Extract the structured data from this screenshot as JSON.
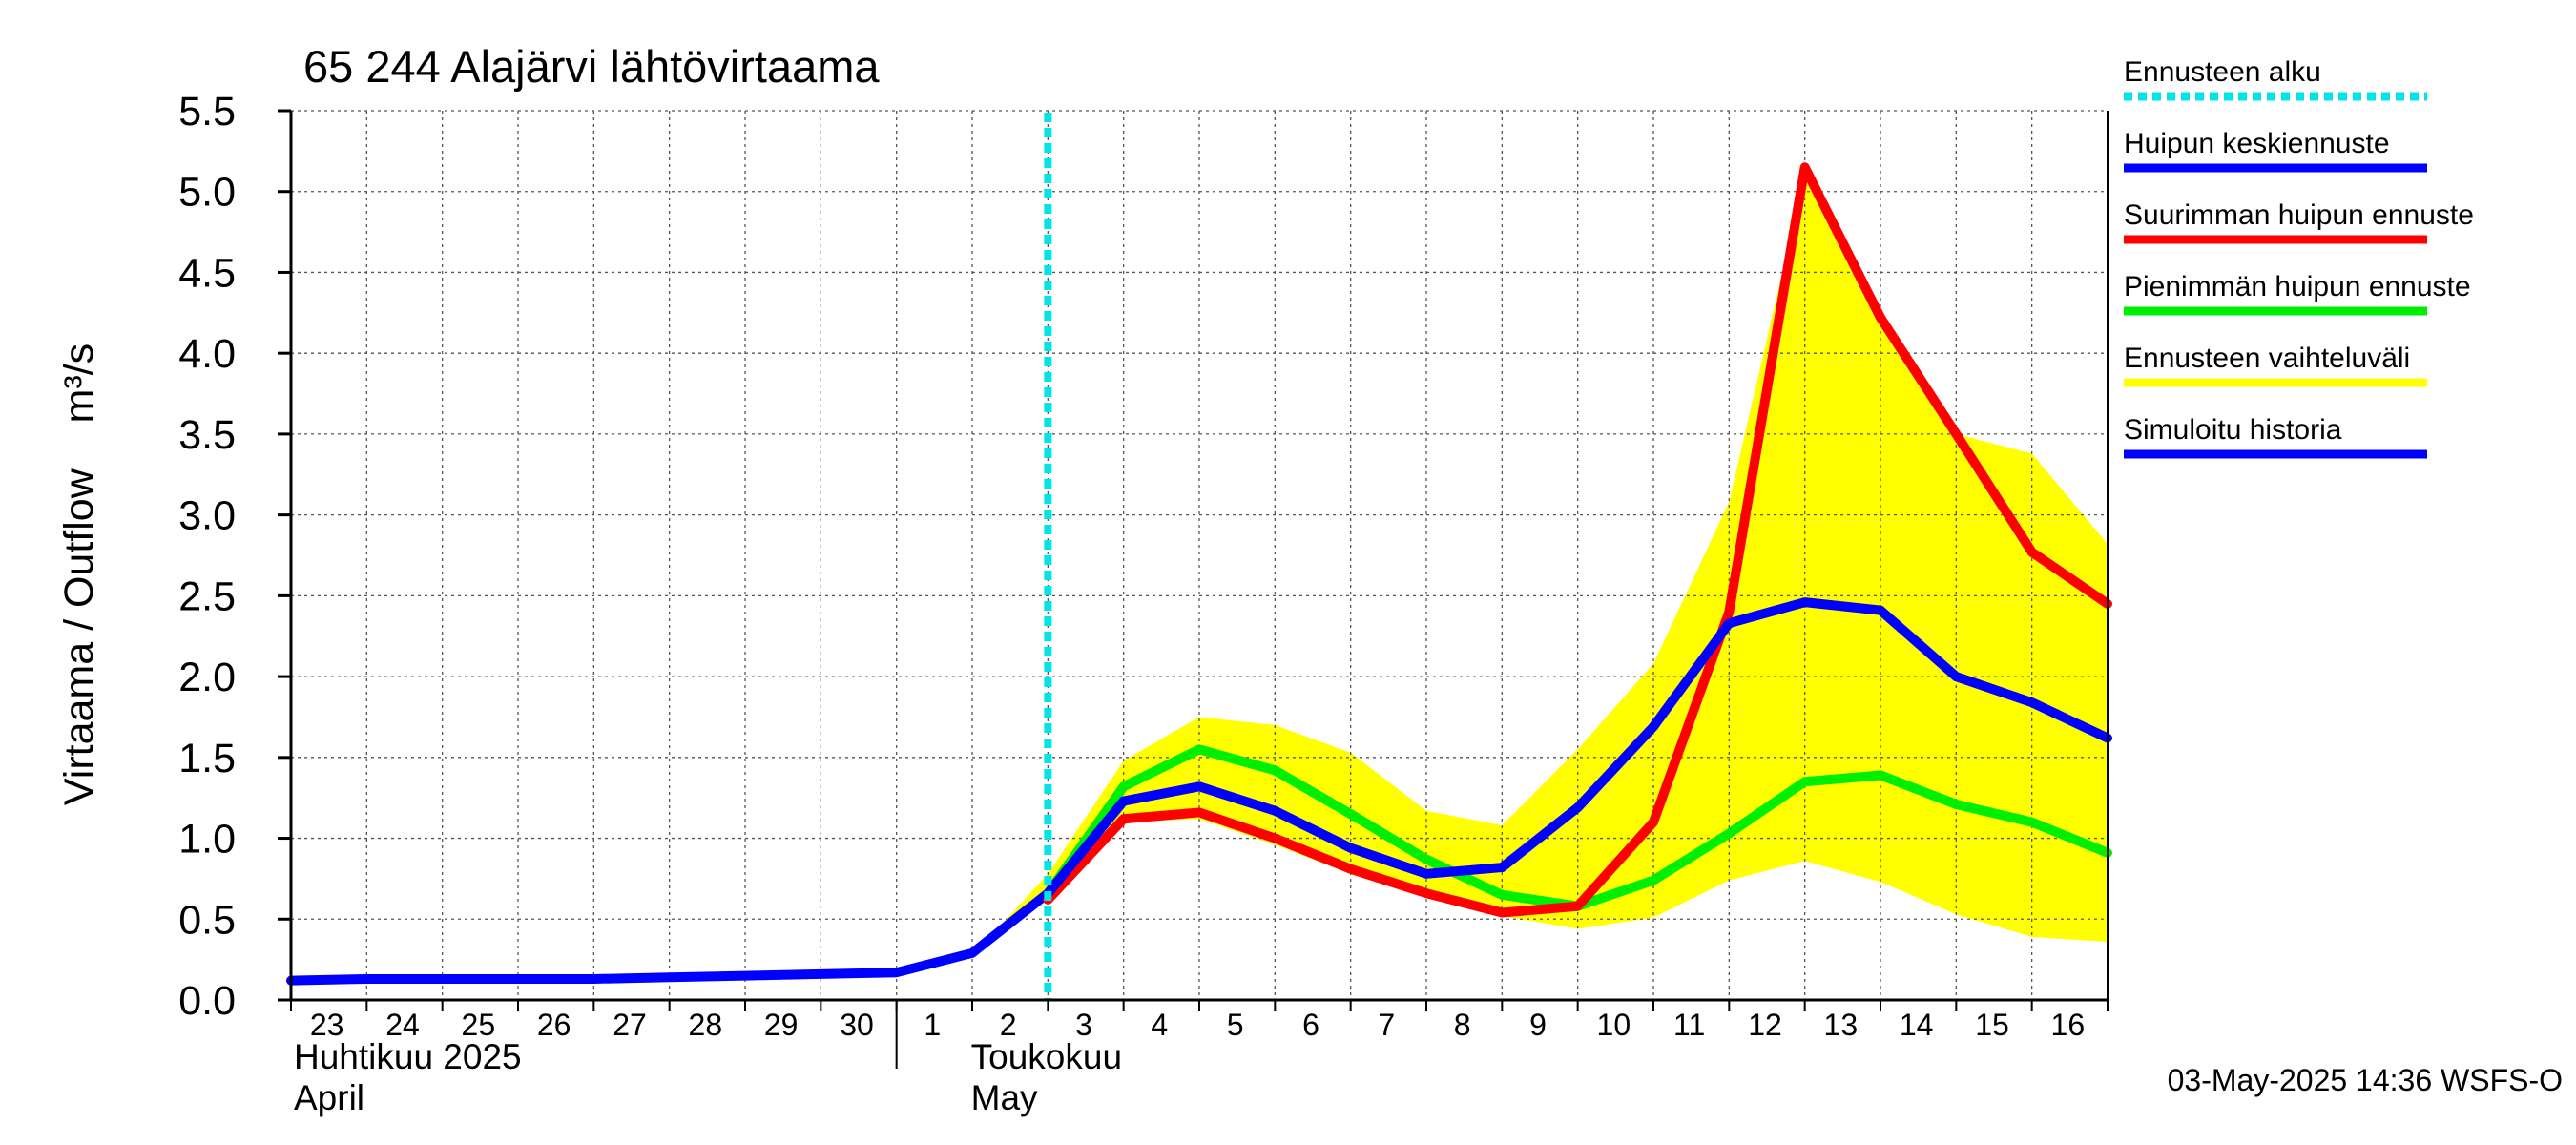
{
  "chart_data": {
    "type": "line",
    "title": "65 244 Alajärvi lähtövirtaama",
    "ylabel": "Virtaama / Outflow    m³/s",
    "ylim": [
      0.0,
      5.5
    ],
    "yticks": [
      "0.0",
      "0.5",
      "1.0",
      "1.5",
      "2.0",
      "2.5",
      "3.0",
      "3.5",
      "4.0",
      "4.5",
      "5.0",
      "5.5"
    ],
    "x_start": "2025-04-23",
    "x_end": "2025-05-17",
    "xtick_labels": [
      "23",
      "24",
      "25",
      "26",
      "27",
      "28",
      "29",
      "30",
      "1",
      "2",
      "3",
      "4",
      "5",
      "6",
      "7",
      "8",
      "9",
      "10",
      "11",
      "12",
      "13",
      "14",
      "15",
      "16"
    ],
    "month_labels": [
      {
        "fi": "Huhtikuu  2025",
        "en": "April"
      },
      {
        "fi": "Toukokuu",
        "en": "May"
      }
    ],
    "forecast_start": "2025-05-03",
    "grid": true,
    "legend_position": "right",
    "legend": [
      {
        "label": "Ennusteen alku",
        "color": "#00e5e5",
        "style": "dotted"
      },
      {
        "label": "Huipun keskiennuste",
        "color": "#0000ff",
        "style": "solid"
      },
      {
        "label": "Suurimman huipun ennuste",
        "color": "#ff0000",
        "style": "solid"
      },
      {
        "label": "Pienimmän huipun ennuste",
        "color": "#00ee00",
        "style": "solid"
      },
      {
        "label": "Ennusteen vaihteluväli",
        "color": "#ffff00",
        "style": "solid"
      },
      {
        "label": "Simuloitu historia",
        "color": "#0000ff",
        "style": "solid"
      }
    ],
    "band": {
      "name": "Ennusteen vaihteluväli",
      "color": "#ffff00",
      "x": [
        "2025-05-02",
        "2025-05-03",
        "2025-05-04",
        "2025-05-05",
        "2025-05-06",
        "2025-05-07",
        "2025-05-08",
        "2025-05-09",
        "2025-05-10",
        "2025-05-11",
        "2025-05-12",
        "2025-05-13",
        "2025-05-14",
        "2025-05-15",
        "2025-05-16",
        "2025-05-17"
      ],
      "upper": [
        0.27,
        0.78,
        1.48,
        1.75,
        1.7,
        1.53,
        1.17,
        1.08,
        1.55,
        2.08,
        3.08,
        5.1,
        4.2,
        3.5,
        3.38,
        2.82
      ],
      "lower": [
        0.27,
        0.62,
        1.1,
        1.12,
        0.96,
        0.78,
        0.64,
        0.52,
        0.44,
        0.51,
        0.74,
        0.86,
        0.73,
        0.53,
        0.39,
        0.36
      ]
    },
    "series": [
      {
        "name": "Simuloitu historia",
        "color": "#0000ff",
        "x": [
          "2025-04-23",
          "2025-04-24",
          "2025-04-25",
          "2025-04-26",
          "2025-04-27",
          "2025-04-28",
          "2025-04-29",
          "2025-04-30",
          "2025-05-01",
          "2025-05-02",
          "2025-05-03"
        ],
        "y": [
          0.12,
          0.13,
          0.13,
          0.13,
          0.13,
          0.14,
          0.15,
          0.16,
          0.17,
          0.29,
          0.66
        ]
      },
      {
        "name": "Pienimmän huipun ennuste",
        "color": "#00ee00",
        "x": [
          "2025-05-03",
          "2025-05-04",
          "2025-05-05",
          "2025-05-06",
          "2025-05-07",
          "2025-05-08",
          "2025-05-09",
          "2025-05-10",
          "2025-05-11",
          "2025-05-12",
          "2025-05-13",
          "2025-05-14",
          "2025-05-15",
          "2025-05-16",
          "2025-05-17"
        ],
        "y": [
          0.66,
          1.32,
          1.55,
          1.42,
          1.15,
          0.87,
          0.65,
          0.58,
          0.74,
          1.03,
          1.35,
          1.39,
          1.21,
          1.1,
          0.91
        ]
      },
      {
        "name": "Suurimman huipun ennuste",
        "color": "#ff0000",
        "x": [
          "2025-05-03",
          "2025-05-04",
          "2025-05-05",
          "2025-05-06",
          "2025-05-07",
          "2025-05-08",
          "2025-05-09",
          "2025-05-10",
          "2025-05-11",
          "2025-05-12",
          "2025-05-13",
          "2025-05-14",
          "2025-05-15",
          "2025-05-16",
          "2025-05-17"
        ],
        "y": [
          0.62,
          1.12,
          1.16,
          1.0,
          0.81,
          0.66,
          0.54,
          0.58,
          1.1,
          2.4,
          5.15,
          4.22,
          3.5,
          2.77,
          2.45
        ]
      },
      {
        "name": "Huipun keskiennuste",
        "color": "#0000ff",
        "x": [
          "2025-05-03",
          "2025-05-04",
          "2025-05-05",
          "2025-05-06",
          "2025-05-07",
          "2025-05-08",
          "2025-05-09",
          "2025-05-10",
          "2025-05-11",
          "2025-05-12",
          "2025-05-13",
          "2025-05-14",
          "2025-05-15",
          "2025-05-16",
          "2025-05-17"
        ],
        "y": [
          0.66,
          1.23,
          1.32,
          1.17,
          0.94,
          0.78,
          0.82,
          1.19,
          1.69,
          2.33,
          2.46,
          2.41,
          2.0,
          1.84,
          1.62
        ]
      }
    ],
    "footer": "03-May-2025 14:36 WSFS-O"
  }
}
